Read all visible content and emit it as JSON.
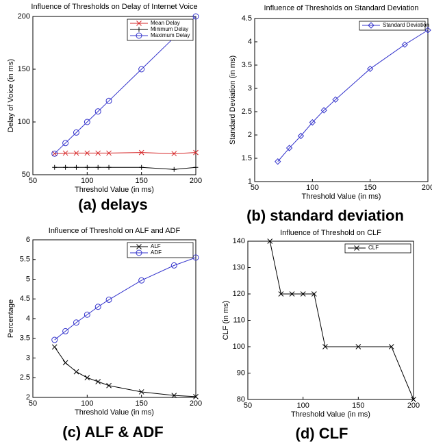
{
  "chart_data": [
    {
      "type": "line",
      "title": "Influence of Thresholds on Delay of Internet Voice",
      "caption": "(a) delays",
      "x_label": "Threshold Value (in ms)",
      "y_label": "Delay of Voice (in ms)",
      "x": [
        70,
        80,
        90,
        100,
        110,
        120,
        150,
        180,
        200
      ],
      "series": [
        {
          "name": "Mean Delay",
          "color": "#d62728",
          "marker": "x",
          "values": [
            70,
            70.5,
            70.5,
            70.5,
            70.5,
            70.5,
            71,
            70,
            71
          ]
        },
        {
          "name": "Minimum Delay",
          "color": "#000000",
          "marker": "+",
          "values": [
            57,
            57,
            57,
            57,
            57,
            57,
            57,
            55,
            57
          ]
        },
        {
          "name": "Maximum Delay",
          "color": "#3333cc",
          "marker": "o",
          "values": [
            70,
            80,
            90,
            100,
            110,
            120,
            150,
            180,
            200
          ]
        }
      ],
      "xlim": [
        50,
        200
      ],
      "xticks": [
        50,
        100,
        150,
        200
      ],
      "ylim": [
        50,
        200
      ],
      "yticks": [
        50,
        100,
        150,
        200
      ],
      "legend": "upper right"
    },
    {
      "type": "line",
      "title": "Influence of Thresholds on Standard Deviation",
      "caption": "(b) standard deviation",
      "x_label": "Threshold Value (in ms)",
      "y_label": "Standard Deviation (in ms)",
      "x": [
        70,
        80,
        90,
        100,
        110,
        120,
        150,
        180,
        200
      ],
      "series": [
        {
          "name": "Standard Deviation",
          "color": "#3333cc",
          "marker": "diamond",
          "values": [
            1.43,
            1.72,
            1.98,
            2.27,
            2.53,
            2.76,
            3.42,
            3.94,
            4.25
          ]
        }
      ],
      "xlim": [
        50,
        200
      ],
      "xticks": [
        50,
        100,
        150,
        200
      ],
      "ylim": [
        1,
        4.5
      ],
      "yticks": [
        1,
        1.5,
        2,
        2.5,
        3,
        3.5,
        4,
        4.5
      ],
      "legend": "upper right"
    },
    {
      "type": "line",
      "title": "Influence of Threshold on ALF and ADF",
      "caption": "(c) ALF & ADF",
      "x_label": "Threshold Value (in ms)",
      "y_label": "Percentage",
      "x": [
        70,
        80,
        90,
        100,
        110,
        120,
        150,
        180,
        200
      ],
      "series": [
        {
          "name": "ALF",
          "color": "#000000",
          "marker": "x",
          "values": [
            3.28,
            2.88,
            2.65,
            2.5,
            2.4,
            2.3,
            2.14,
            2.05,
            2.02
          ]
        },
        {
          "name": "ADF",
          "color": "#3333cc",
          "marker": "o",
          "values": [
            3.46,
            3.68,
            3.9,
            4.1,
            4.3,
            4.48,
            4.97,
            5.35,
            5.55
          ]
        }
      ],
      "xlim": [
        50,
        200
      ],
      "xticks": [
        50,
        100,
        150,
        200
      ],
      "ylim": [
        2,
        6
      ],
      "yticks": [
        2,
        2.5,
        3,
        3.5,
        4,
        4.5,
        5,
        5.5,
        6
      ],
      "legend": "upper right"
    },
    {
      "type": "line",
      "title": "Influence of Threshold on CLF",
      "caption": "(d) CLF",
      "x_label": "Threshold Value (in ms)",
      "y_label": "CLF (in ms)",
      "x": [
        70,
        80,
        90,
        100,
        110,
        120,
        150,
        180,
        200
      ],
      "series": [
        {
          "name": "CLF",
          "color": "#000000",
          "marker": "x",
          "values": [
            140,
            120,
            120,
            120,
            120,
            100,
            100,
            100,
            80
          ]
        }
      ],
      "xlim": [
        50,
        200
      ],
      "xticks": [
        50,
        100,
        150,
        200
      ],
      "ylim": [
        80,
        140
      ],
      "yticks": [
        80,
        90,
        100,
        110,
        120,
        130,
        140
      ],
      "legend": "upper right"
    }
  ]
}
